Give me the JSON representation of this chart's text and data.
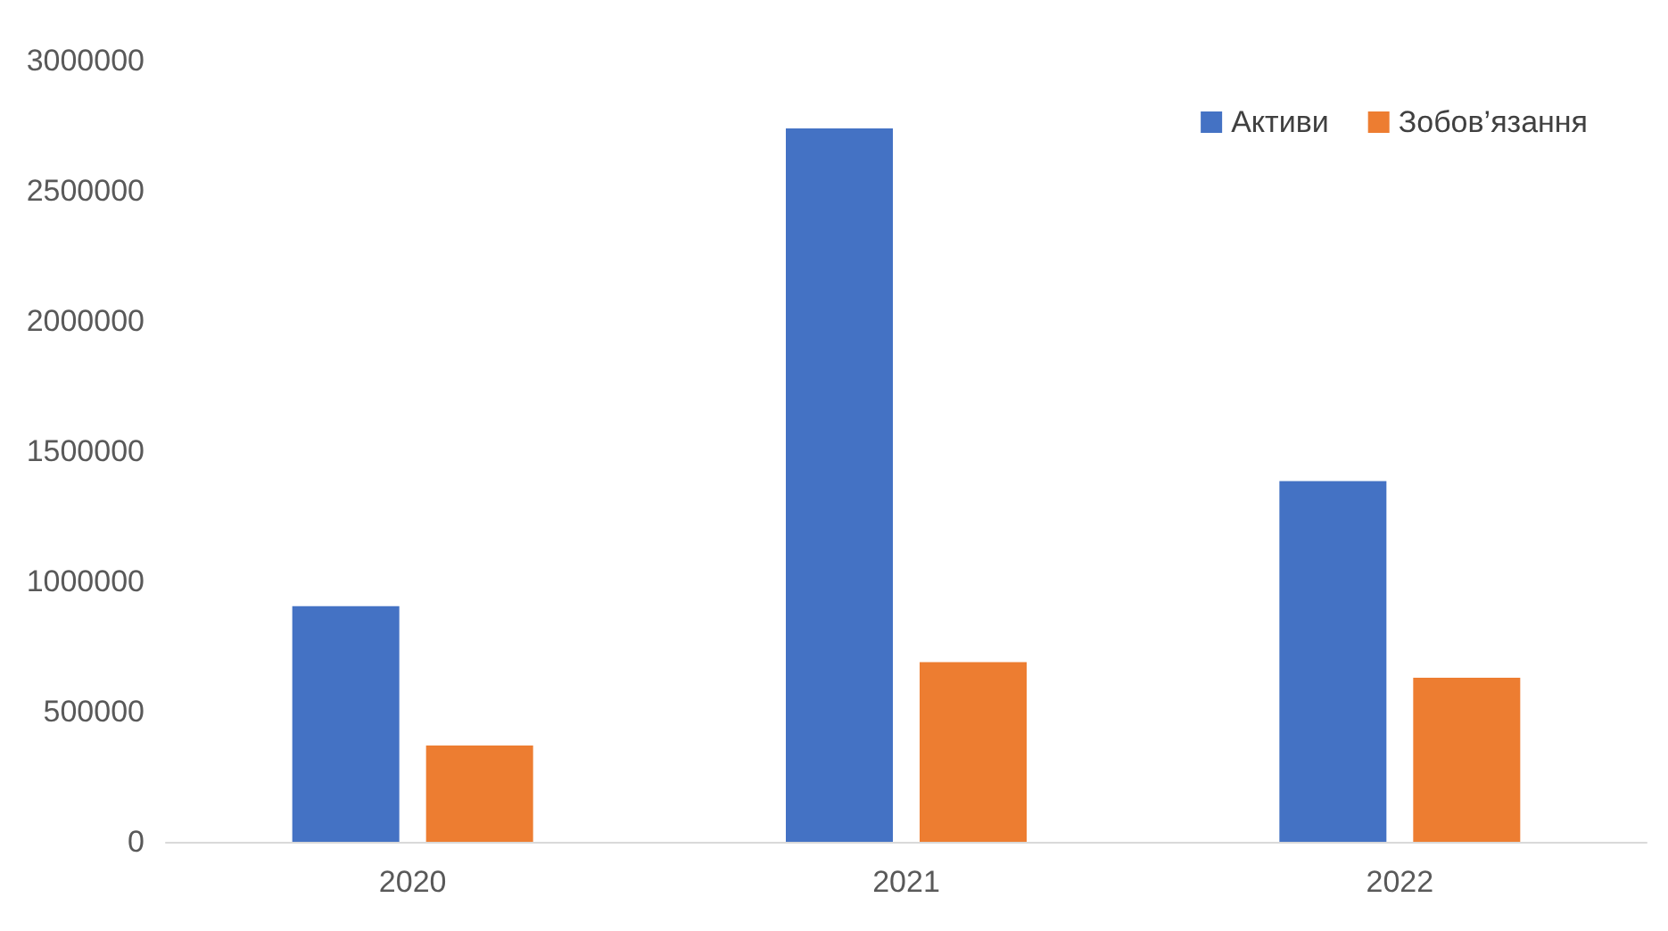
{
  "chart_data": {
    "type": "bar",
    "categories": [
      "2020",
      "2021",
      "2022"
    ],
    "series": [
      {
        "name": "Активи",
        "color": "#4472c4",
        "values": [
          905000,
          2740000,
          1385000
        ]
      },
      {
        "name": "Зобов’язання",
        "color": "#ed7d31",
        "values": [
          370000,
          690000,
          630000
        ]
      }
    ],
    "ylim": [
      0,
      3000000
    ],
    "yticks": [
      0,
      500000,
      1000000,
      1500000,
      2000000,
      2500000,
      3000000
    ],
    "grid": false,
    "legend": "top right"
  }
}
